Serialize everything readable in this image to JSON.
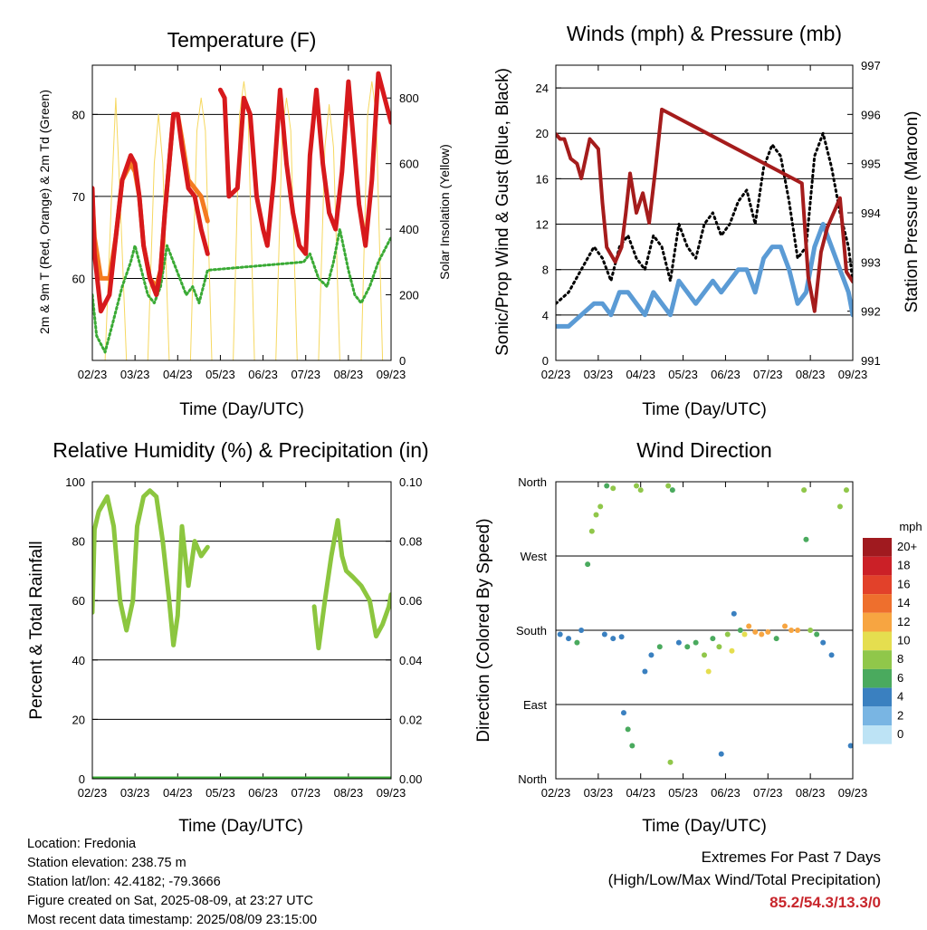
{
  "colors": {
    "t2m": "#d7191c",
    "t9m": "#f47b20",
    "td": "#3aaa35",
    "solar": "#f6d860",
    "gust": "#000000",
    "wind": "#5b9bd5",
    "pressure": "#a51c1c",
    "rh": "#8cc63f",
    "precip": "#3aaa35"
  },
  "chart_data": [
    {
      "id": "temperature",
      "type": "line",
      "title": "Temperature (F)",
      "xlabel": "Time (Day/UTC)",
      "ylabel": "2m & 9m T (Red, Orange) & 2m Td (Green)",
      "y2label": "Solar Insolation (Yellow)",
      "xticks": [
        "02/23",
        "03/23",
        "04/23",
        "05/23",
        "06/23",
        "07/23",
        "08/23",
        "09/23"
      ],
      "xlim": [
        0,
        7
      ],
      "ylim": [
        50,
        86
      ],
      "yticks": [
        60,
        70,
        80
      ],
      "y2lim": [
        0,
        900
      ],
      "y2ticks": [
        0,
        200,
        400,
        600,
        800
      ],
      "series": [
        {
          "key": "t9m",
          "x": [
            0,
            0.05,
            0.2,
            0.4,
            0.55,
            0.7,
            0.9,
            1.0,
            1.1,
            1.2,
            1.35,
            1.5,
            1.6,
            1.7,
            1.8,
            1.9,
            2.0,
            2.1,
            2.25,
            2.4,
            2.55,
            2.7
          ],
          "y": [
            70,
            65,
            60,
            60,
            65,
            72,
            74,
            73,
            70,
            64,
            60,
            59,
            61,
            68,
            74,
            80,
            80,
            77,
            72,
            71,
            70,
            67
          ]
        },
        {
          "key": "t2m",
          "x": [
            0,
            0.05,
            0.2,
            0.4,
            0.55,
            0.7,
            0.9,
            1.0,
            1.1,
            1.2,
            1.35,
            1.5,
            1.6,
            1.7,
            1.8,
            1.9,
            2.0,
            2.1,
            2.25,
            2.4,
            2.55,
            2.7,
            2.85,
            3.0,
            3.1,
            3.2,
            3.4,
            3.55,
            3.7,
            3.85,
            4.0,
            4.1,
            4.25,
            4.4,
            4.55,
            4.7,
            4.85,
            5.0,
            5.1,
            5.25,
            5.4,
            5.55,
            5.7,
            5.85,
            6.0,
            6.1,
            6.25,
            6.4,
            6.55,
            6.7,
            6.85,
            7.0
          ],
          "y": [
            71,
            63,
            56,
            58,
            65,
            72,
            75,
            74,
            70,
            64,
            60,
            58,
            61,
            68,
            74,
            80,
            80,
            76,
            71,
            70,
            66,
            63,
            null,
            83,
            82,
            70,
            71,
            82,
            80,
            70,
            66,
            64,
            72,
            83,
            74,
            68,
            64,
            63,
            75,
            83,
            74,
            68,
            66,
            73,
            84,
            78,
            69,
            64,
            72,
            85,
            82,
            79
          ]
        },
        {
          "key": "td",
          "x": [
            0,
            0.1,
            0.3,
            0.5,
            0.7,
            0.9,
            1.0,
            1.15,
            1.3,
            1.45,
            1.6,
            1.75,
            1.9,
            2.05,
            2.2,
            2.35,
            2.5,
            2.7,
            4.95,
            5.1,
            5.3,
            5.5,
            5.65,
            5.8,
            6.0,
            6.15,
            6.3,
            6.5,
            6.7,
            6.9,
            7.0
          ],
          "y": [
            58,
            53,
            51,
            55,
            59,
            62,
            64,
            61,
            58,
            57,
            59,
            64,
            62,
            60,
            58,
            59,
            57,
            61,
            62,
            63,
            60,
            59,
            62,
            66,
            61,
            58,
            57,
            59,
            62,
            64,
            65
          ]
        },
        {
          "key": "solar",
          "x": [
            0,
            0.3,
            0.45,
            0.55,
            0.65,
            0.8,
            1.3,
            1.45,
            1.55,
            1.65,
            1.8,
            2.3,
            2.45,
            2.55,
            2.65,
            2.8,
            3.3,
            3.45,
            3.55,
            3.65,
            3.8,
            4.3,
            4.45,
            4.55,
            4.65,
            4.8,
            5.3,
            5.45,
            5.55,
            5.65,
            5.8,
            6.3,
            6.45,
            6.55,
            6.65,
            6.8,
            7.0
          ],
          "y": [
            0,
            0,
            500,
            800,
            500,
            0,
            0,
            600,
            750,
            600,
            0,
            0,
            700,
            800,
            700,
            0,
            0,
            750,
            850,
            750,
            0,
            0,
            700,
            800,
            700,
            0,
            0,
            650,
            780,
            650,
            0,
            0,
            750,
            850,
            750,
            0,
            0
          ]
        }
      ]
    },
    {
      "id": "winds",
      "type": "line",
      "title": "Winds (mph) & Pressure (mb)",
      "xlabel": "Time (Day/UTC)",
      "ylabel": "Sonic/Prop Wind & Gust (Blue, Black)",
      "y2label": "Station Pressure (Maroon)",
      "xticks": [
        "02/23",
        "03/23",
        "04/23",
        "05/23",
        "06/23",
        "07/23",
        "08/23",
        "09/23"
      ],
      "xlim": [
        0,
        7
      ],
      "ylim": [
        0,
        26
      ],
      "yticks": [
        0,
        4,
        8,
        12,
        16,
        20,
        24
      ],
      "y2lim": [
        991,
        997
      ],
      "y2ticks": [
        991,
        992,
        993,
        994,
        995,
        996,
        997
      ],
      "series": [
        {
          "key": "gust",
          "x": [
            0,
            0.3,
            0.6,
            0.9,
            1.1,
            1.3,
            1.5,
            1.7,
            1.9,
            2.1,
            2.3,
            2.5,
            2.7,
            2.9,
            3.1,
            3.3,
            3.5,
            3.7,
            3.9,
            4.1,
            4.3,
            4.5,
            4.7,
            4.9,
            5.1,
            5.3,
            5.5,
            5.7,
            5.9,
            6.1,
            6.3,
            6.5,
            6.7,
            6.9,
            7.0
          ],
          "y": [
            5,
            6,
            8,
            10,
            9,
            7,
            10,
            11,
            9,
            8,
            11,
            10,
            7,
            12,
            10,
            9,
            12,
            13,
            11,
            12,
            14,
            15,
            12,
            17,
            19,
            18,
            14,
            9,
            10,
            18,
            20,
            17,
            13,
            10,
            7
          ]
        },
        {
          "key": "wind",
          "x": [
            0,
            0.3,
            0.6,
            0.9,
            1.1,
            1.3,
            1.5,
            1.7,
            1.9,
            2.1,
            2.3,
            2.5,
            2.7,
            2.9,
            3.1,
            3.3,
            3.5,
            3.7,
            3.9,
            4.1,
            4.3,
            4.5,
            4.7,
            4.9,
            5.1,
            5.3,
            5.5,
            5.7,
            5.9,
            6.1,
            6.3,
            6.5,
            6.7,
            6.9,
            7.0
          ],
          "y": [
            3,
            3,
            4,
            5,
            5,
            4,
            6,
            6,
            5,
            4,
            6,
            5,
            4,
            7,
            6,
            5,
            6,
            7,
            6,
            7,
            8,
            8,
            6,
            9,
            10,
            10,
            8,
            5,
            6,
            10,
            12,
            10,
            8,
            6,
            4
          ]
        },
        {
          "key": "pressure",
          "x": [
            0,
            0.1,
            0.2,
            0.35,
            0.5,
            0.6,
            0.8,
            1.0,
            1.1,
            1.2,
            1.4,
            1.55,
            1.65,
            1.75,
            1.9,
            2.05,
            2.2,
            2.35,
            2.5,
            5.8,
            5.95,
            6.1,
            6.25,
            6.4,
            6.55,
            6.7,
            6.85,
            7.0
          ],
          "y": [
            995.6,
            995.5,
            995.5,
            995.1,
            995.0,
            994.7,
            995.5,
            995.3,
            994.2,
            993.3,
            993.0,
            993.3,
            994.0,
            994.8,
            994.0,
            994.4,
            993.8,
            994.9,
            996.1,
            994.6,
            992.7,
            992.0,
            993.2,
            993.7,
            994.0,
            994.3,
            992.8,
            992.6
          ]
        }
      ]
    },
    {
      "id": "humidity",
      "type": "line",
      "title": "Relative Humidity (%) & Precipitation (in)",
      "xlabel": "Time (Day/UTC)",
      "ylabel": "Percent & Total Rainfall",
      "xticks": [
        "02/23",
        "03/23",
        "04/23",
        "05/23",
        "06/23",
        "07/23",
        "08/23",
        "09/23"
      ],
      "xlim": [
        0,
        7
      ],
      "ylim": [
        0,
        100
      ],
      "yticks": [
        0,
        20,
        40,
        60,
        80,
        100
      ],
      "y2lim": [
        0,
        0.1
      ],
      "y2ticks": [
        "0.00",
        "0.02",
        "0.04",
        "0.06",
        "0.08",
        "0.10"
      ],
      "series": [
        {
          "key": "rh",
          "x": [
            0,
            0.05,
            0.15,
            0.35,
            0.5,
            0.65,
            0.8,
            0.95,
            1.05,
            1.2,
            1.35,
            1.5,
            1.65,
            1.8,
            1.9,
            2.0,
            2.1,
            2.25,
            2.4,
            2.55,
            2.7
          ],
          "y": [
            56,
            84,
            90,
            95,
            85,
            60,
            50,
            60,
            85,
            95,
            97,
            95,
            80,
            60,
            45,
            55,
            85,
            65,
            80,
            75,
            78
          ]
        },
        {
          "key": "rh",
          "x": [
            5.2,
            5.3,
            5.45,
            5.6,
            5.75,
            5.85,
            5.95,
            6.1,
            6.3,
            6.5,
            6.65,
            6.8,
            6.95,
            7.0
          ],
          "y": [
            58,
            44,
            60,
            75,
            87,
            75,
            70,
            68,
            65,
            60,
            48,
            52,
            58,
            62
          ]
        },
        {
          "key": "precip",
          "x": [
            0,
            2.8,
            2.9,
            7.0
          ],
          "y": [
            0,
            0,
            0,
            0
          ]
        }
      ]
    },
    {
      "id": "direction",
      "type": "scatter",
      "title": "Wind Direction",
      "xlabel": "Time (Day/UTC)",
      "ylabel": "Direction (Colored By Speed)",
      "xticks": [
        "02/23",
        "03/23",
        "04/23",
        "05/23",
        "06/23",
        "07/23",
        "08/23",
        "09/23"
      ],
      "xlim": [
        0,
        7
      ],
      "ylim": [
        0,
        360
      ],
      "ytick_labels": [
        "North",
        "East",
        "South",
        "West",
        "North"
      ],
      "colorbar_title": "mph",
      "colorbar_labels": [
        "20+",
        "18",
        "16",
        "14",
        "12",
        "10",
        "8",
        "6",
        "4",
        "2",
        "0"
      ],
      "colorbar_colors": [
        "#a01a1f",
        "#cb2027",
        "#e2412a",
        "#ee6f2d",
        "#f7a541",
        "#e5de4f",
        "#90c74a",
        "#4aaa5e",
        "#3a80c0",
        "#79b5e3",
        "#bde3f5"
      ],
      "points": [
        {
          "x": 0.1,
          "y": 175,
          "s": 3
        },
        {
          "x": 0.3,
          "y": 170,
          "s": 4
        },
        {
          "x": 0.5,
          "y": 165,
          "s": 5
        },
        {
          "x": 0.6,
          "y": 180,
          "s": 4
        },
        {
          "x": 0.75,
          "y": 260,
          "s": 6
        },
        {
          "x": 0.85,
          "y": 300,
          "s": 7
        },
        {
          "x": 0.95,
          "y": 320,
          "s": 8
        },
        {
          "x": 1.05,
          "y": 330,
          "s": 7
        },
        {
          "x": 1.15,
          "y": 175,
          "s": 3
        },
        {
          "x": 1.35,
          "y": 170,
          "s": 4
        },
        {
          "x": 1.55,
          "y": 172,
          "s": 3
        },
        {
          "x": 1.2,
          "y": 355,
          "s": 6
        },
        {
          "x": 1.35,
          "y": 352,
          "s": 7
        },
        {
          "x": 1.6,
          "y": 80,
          "s": 4
        },
        {
          "x": 1.7,
          "y": 60,
          "s": 5
        },
        {
          "x": 1.8,
          "y": 40,
          "s": 6
        },
        {
          "x": 1.9,
          "y": 355,
          "s": 7
        },
        {
          "x": 2.0,
          "y": 350,
          "s": 8
        },
        {
          "x": 2.1,
          "y": 130,
          "s": 3
        },
        {
          "x": 2.25,
          "y": 150,
          "s": 4
        },
        {
          "x": 2.45,
          "y": 160,
          "s": 5
        },
        {
          "x": 2.65,
          "y": 355,
          "s": 7
        },
        {
          "x": 2.75,
          "y": 350,
          "s": 6
        },
        {
          "x": 2.7,
          "y": 20,
          "s": 8
        },
        {
          "x": 2.9,
          "y": 165,
          "s": 4
        },
        {
          "x": 3.1,
          "y": 160,
          "s": 5
        },
        {
          "x": 3.3,
          "y": 165,
          "s": 6
        },
        {
          "x": 3.5,
          "y": 150,
          "s": 8
        },
        {
          "x": 3.6,
          "y": 130,
          "s": 9
        },
        {
          "x": 3.7,
          "y": 170,
          "s": 6
        },
        {
          "x": 3.85,
          "y": 160,
          "s": 7
        },
        {
          "x": 4.05,
          "y": 175,
          "s": 8
        },
        {
          "x": 4.15,
          "y": 155,
          "s": 9
        },
        {
          "x": 3.9,
          "y": 30,
          "s": 3
        },
        {
          "x": 4.2,
          "y": 200,
          "s": 4
        },
        {
          "x": 4.35,
          "y": 180,
          "s": 6
        },
        {
          "x": 4.45,
          "y": 175,
          "s": 9
        },
        {
          "x": 4.55,
          "y": 185,
          "s": 12
        },
        {
          "x": 4.7,
          "y": 178,
          "s": 11
        },
        {
          "x": 4.85,
          "y": 175,
          "s": 12
        },
        {
          "x": 5.0,
          "y": 178,
          "s": 11
        },
        {
          "x": 5.2,
          "y": 170,
          "s": 6
        },
        {
          "x": 5.4,
          "y": 185,
          "s": 11
        },
        {
          "x": 5.55,
          "y": 180,
          "s": 12
        },
        {
          "x": 5.7,
          "y": 180,
          "s": 11
        },
        {
          "x": 5.85,
          "y": 350,
          "s": 7
        },
        {
          "x": 5.9,
          "y": 290,
          "s": 6
        },
        {
          "x": 6.0,
          "y": 180,
          "s": 8
        },
        {
          "x": 6.15,
          "y": 175,
          "s": 5
        },
        {
          "x": 6.3,
          "y": 165,
          "s": 4
        },
        {
          "x": 6.5,
          "y": 150,
          "s": 3
        },
        {
          "x": 6.7,
          "y": 330,
          "s": 7
        },
        {
          "x": 6.85,
          "y": 350,
          "s": 8
        },
        {
          "x": 6.95,
          "y": 40,
          "s": 4
        }
      ]
    }
  ],
  "footer": {
    "location": "Location: Fredonia",
    "elevation": "Station elevation: 238.75 m",
    "latlon": "Station lat/lon: 42.4182; -79.3666",
    "created": "Figure created on Sat, 2025-08-09, at 23:27 UTC",
    "latest": "Most recent data timestamp: 2025/08/09 23:15:00"
  },
  "extremes": {
    "title": "Extremes For Past 7 Days",
    "subtitle": "(High/Low/Max Wind/Total Precipitation)",
    "values": "85.2/54.3/13.3/0"
  }
}
